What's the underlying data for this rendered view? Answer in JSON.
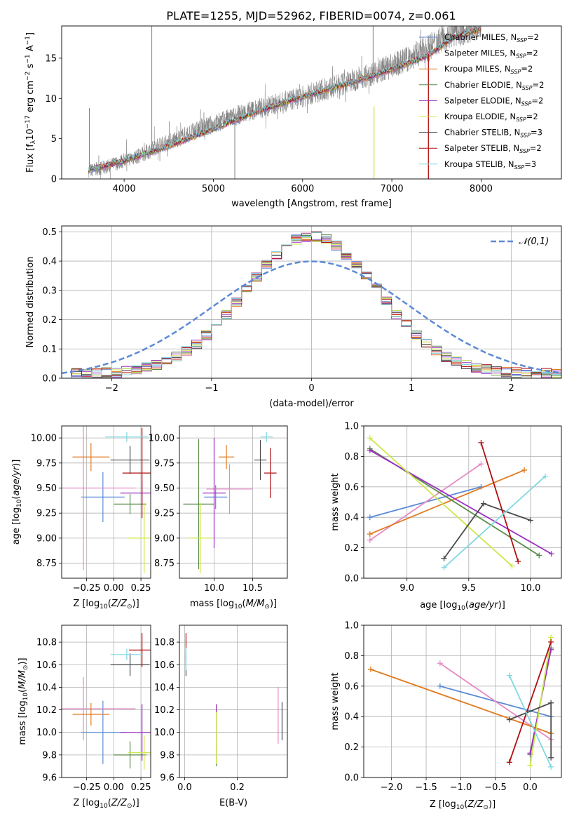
{
  "title": "PLATE=1255, MJD=52962, FIBERID=0074, z=0.061",
  "colors": {
    "Chabrier MILES": "#5b8ad6",
    "Salpeter MILES": "#e58ac4",
    "Kroupa MILES": "#e07a1f",
    "Chabrier ELODIE": "#5a8a4a",
    "Salpeter ELODIE": "#9c2fc0",
    "Kroupa ELODIE": "#cce84a",
    "Chabrier STELIB": "#4a4a4a",
    "Salpeter STELIB": "#b01010",
    "Kroupa STELIB": "#80d8e0",
    "data": "#808080",
    "normal": "#5b8ad6"
  },
  "chart_data": [
    {
      "id": "spectrum",
      "type": "line",
      "xlabel": "wavelength [Angstrom, rest frame]",
      "ylabel": "Flux [f_λ 10^-17 erg cm^-2 s^-1 A^-1]",
      "xlim": [
        3300,
        8900
      ],
      "ylim": [
        0,
        19
      ],
      "xticks": [
        4000,
        5000,
        6000,
        7000,
        8000
      ],
      "yticks": [
        0,
        5,
        10,
        15
      ],
      "grid": false,
      "legend_position": "right",
      "data_series": {
        "name": "data",
        "x": [
          3600,
          3800,
          4000,
          4200,
          4400,
          4600,
          4800,
          5000,
          5200,
          5400,
          5600,
          5800,
          6000,
          6200,
          6400,
          6600,
          6800,
          7000,
          7200,
          7400,
          7600,
          7800,
          8000
        ],
        "y": [
          1.0,
          1.5,
          2.3,
          3.0,
          4.2,
          5.0,
          6.0,
          6.8,
          7.6,
          8.4,
          9.0,
          9.6,
          10.2,
          11.0,
          11.6,
          12.4,
          13.2,
          14.0,
          15.0,
          16.2,
          17.8,
          18.4,
          19.0
        ],
        "spikes": [
          {
            "x": 3610,
            "y": 8.8
          },
          {
            "x": 4310,
            "y": 19.0
          },
          {
            "x": 5240,
            "y": 0.0
          },
          {
            "x": 6790,
            "y": 19.0
          }
        ]
      },
      "series": [
        {
          "name": "Chabrier MILES",
          "nssp": "2"
        },
        {
          "name": "Salpeter MILES",
          "nssp": "2"
        },
        {
          "name": "Kroupa MILES",
          "nssp": "2"
        },
        {
          "name": "Chabrier ELODIE",
          "nssp": "2"
        },
        {
          "name": "Salpeter ELODIE",
          "nssp": "2"
        },
        {
          "name": "Kroupa ELODIE",
          "nssp": "2"
        },
        {
          "name": "Chabrier STELIB",
          "nssp": "3"
        },
        {
          "name": "Salpeter STELIB",
          "nssp": "2"
        },
        {
          "name": "Kroupa STELIB",
          "nssp": "3"
        }
      ],
      "model_trend": {
        "x": [
          3600,
          4000,
          4500,
          5000,
          5500,
          6000,
          6500,
          7000,
          7400,
          7700,
          8000
        ],
        "y": [
          1.1,
          2.2,
          4.1,
          6.2,
          8.4,
          10.2,
          11.8,
          13.6,
          15.3,
          17.6,
          18.6
        ]
      },
      "artifacts": [
        {
          "series": "Kroupa ELODIE",
          "x": 6800,
          "from": 0,
          "to": 9
        },
        {
          "series": "Salpeter STELIB",
          "x": 7410,
          "from": 0,
          "to": 15.5
        }
      ]
    },
    {
      "id": "residuals",
      "type": "histogram",
      "xlabel": "(data-model)/error",
      "ylabel": "Normed distribution",
      "xlim": [
        -2.5,
        2.5
      ],
      "ylim": [
        0,
        0.52
      ],
      "xticks": [
        -2,
        -1,
        0,
        1,
        2
      ],
      "yticks": [
        0.0,
        0.1,
        0.2,
        0.3,
        0.4,
        0.5
      ],
      "grid": true,
      "bin_width": 0.1,
      "normal_label": "𝒩(0,1)",
      "legend_position": "top-right"
    },
    {
      "id": "age-vs-Z",
      "type": "errorbar",
      "xlabel": "Z [log10(Z/Z☉)]",
      "ylabel": "age [log10(age/yr)]",
      "xlim": [
        -0.48,
        0.34
      ],
      "ylim": [
        8.6,
        10.12
      ],
      "xticks": [
        -0.25,
        0.0,
        0.25
      ],
      "yticks": [
        8.75,
        9.0,
        9.25,
        9.5,
        9.75,
        10.0
      ],
      "points": [
        {
          "series": "Chabrier MILES",
          "x": -0.1,
          "y": 9.41,
          "xerr": 0.2,
          "yerr": 0.25
        },
        {
          "series": "Salpeter MILES",
          "x": -0.28,
          "y": 9.5,
          "xerr": 0.48,
          "yerr": 0.82
        },
        {
          "series": "Kroupa MILES",
          "x": -0.21,
          "y": 9.81,
          "xerr": 0.17,
          "yerr": 0.14
        },
        {
          "series": "Chabrier ELODIE",
          "x": 0.15,
          "y": 9.34,
          "xerr": 0.15,
          "yerr": 0.1
        },
        {
          "series": "Salpeter ELODIE",
          "x": 0.26,
          "y": 9.45,
          "xerr": 0.2,
          "yerr": 0.12
        },
        {
          "series": "Kroupa ELODIE",
          "x": 0.28,
          "y": 9.0,
          "xerr": 0.15,
          "yerr": 0.35
        },
        {
          "series": "Chabrier STELIB",
          "x": 0.15,
          "y": 9.78,
          "xerr": 0.18,
          "yerr": 0.14
        },
        {
          "series": "Salpeter STELIB",
          "x": 0.26,
          "y": 9.65,
          "xerr": 0.18,
          "yerr": 0.45
        },
        {
          "series": "Kroupa STELIB",
          "x": 0.12,
          "y": 10.01,
          "xerr": 0.2,
          "yerr": 0.05
        }
      ]
    },
    {
      "id": "age-vs-mass",
      "type": "errorbar",
      "xlabel": "mass [log10(M/M☉)]",
      "ylabel": "",
      "xlim": [
        9.55,
        10.95
      ],
      "ylim": [
        8.6,
        10.12
      ],
      "xticks": [
        10.0,
        10.5
      ],
      "yticks": [
        8.75,
        9.0,
        9.25,
        9.5,
        9.75,
        10.0
      ],
      "points": [
        {
          "series": "Chabrier MILES",
          "x": 10.02,
          "y": 9.41,
          "xerr": 0.15,
          "yerr": 0.12
        },
        {
          "series": "Salpeter MILES",
          "x": 10.2,
          "y": 9.49,
          "xerr": 0.3,
          "yerr": 0.25
        },
        {
          "series": "Kroupa MILES",
          "x": 10.16,
          "y": 9.81,
          "xerr": 0.1,
          "yerr": 0.12
        },
        {
          "series": "Chabrier ELODIE",
          "x": 9.8,
          "y": 9.34,
          "xerr": 0.2,
          "yerr": 0.65
        },
        {
          "series": "Salpeter ELODIE",
          "x": 10.0,
          "y": 9.45,
          "xerr": 0.15,
          "yerr": 0.55
        },
        {
          "series": "Kroupa ELODIE",
          "x": 9.82,
          "y": 9.0,
          "xerr": 0.15,
          "yerr": 0.35
        },
        {
          "series": "Chabrier STELIB",
          "x": 10.6,
          "y": 9.78,
          "xerr": 0.08,
          "yerr": 0.2
        },
        {
          "series": "Salpeter STELIB",
          "x": 10.73,
          "y": 9.65,
          "xerr": 0.08,
          "yerr": 0.25
        },
        {
          "series": "Kroupa STELIB",
          "x": 10.68,
          "y": 10.01,
          "xerr": 0.08,
          "yerr": 0.05
        }
      ]
    },
    {
      "id": "weight-vs-age",
      "type": "line",
      "xlabel": "age [log10(age/yr)]",
      "ylabel": "mass weight",
      "xlim": [
        8.65,
        10.25
      ],
      "ylim": [
        0.0,
        1.0
      ],
      "xticks": [
        9.0,
        9.5,
        10.0
      ],
      "yticks": [
        0.0,
        0.2,
        0.4,
        0.6,
        0.8,
        1.0
      ],
      "grid": true,
      "series": [
        {
          "name": "Chabrier MILES",
          "x": [
            8.7,
            9.6
          ],
          "y": [
            0.4,
            0.6
          ]
        },
        {
          "name": "Salpeter MILES",
          "x": [
            8.7,
            9.6
          ],
          "y": [
            0.25,
            0.75
          ]
        },
        {
          "name": "Kroupa MILES",
          "x": [
            8.7,
            9.95
          ],
          "y": [
            0.29,
            0.71
          ]
        },
        {
          "name": "Chabrier ELODIE",
          "x": [
            8.7,
            10.07
          ],
          "y": [
            0.85,
            0.15
          ]
        },
        {
          "name": "Salpeter ELODIE",
          "x": [
            8.7,
            10.17
          ],
          "y": [
            0.84,
            0.16
          ]
        },
        {
          "name": "Kroupa ELODIE",
          "x": [
            8.7,
            9.85
          ],
          "y": [
            0.92,
            0.08
          ]
        },
        {
          "name": "Chabrier STELIB",
          "x": [
            9.3,
            9.62,
            10.0
          ],
          "y": [
            0.13,
            0.49,
            0.38
          ]
        },
        {
          "name": "Salpeter STELIB",
          "x": [
            9.6,
            9.9
          ],
          "y": [
            0.89,
            0.11
          ]
        },
        {
          "name": "Kroupa STELIB",
          "x": [
            9.3,
            10.12
          ],
          "y": [
            0.07,
            0.67
          ]
        }
      ]
    },
    {
      "id": "mass-vs-Z",
      "type": "errorbar",
      "xlabel": "Z [log10(Z/Z☉)]",
      "ylabel": "mass [log10(M/M☉)]",
      "xlim": [
        -0.48,
        0.34
      ],
      "ylim": [
        9.6,
        10.95
      ],
      "xticks": [
        -0.25,
        0.0,
        0.25
      ],
      "yticks": [
        9.6,
        9.8,
        10.0,
        10.2,
        10.4,
        10.6,
        10.8
      ],
      "points": [
        {
          "series": "Chabrier MILES",
          "x": -0.1,
          "y": 10.0,
          "xerr": 0.2,
          "yerr": 0.28
        },
        {
          "series": "Salpeter MILES",
          "x": -0.28,
          "y": 10.21,
          "xerr": 0.48,
          "yerr": 0.28
        },
        {
          "series": "Kroupa MILES",
          "x": -0.21,
          "y": 10.16,
          "xerr": 0.17,
          "yerr": 0.1
        },
        {
          "series": "Chabrier ELODIE",
          "x": 0.15,
          "y": 9.8,
          "xerr": 0.15,
          "yerr": 0.12
        },
        {
          "series": "Salpeter ELODIE",
          "x": 0.26,
          "y": 10.0,
          "xerr": 0.2,
          "yerr": 0.25
        },
        {
          "series": "Kroupa ELODIE",
          "x": 0.28,
          "y": 9.82,
          "xerr": 0.15,
          "yerr": 0.15
        },
        {
          "series": "Chabrier STELIB",
          "x": 0.15,
          "y": 10.6,
          "xerr": 0.18,
          "yerr": 0.1
        },
        {
          "series": "Salpeter STELIB",
          "x": 0.26,
          "y": 10.73,
          "xerr": 0.12,
          "yerr": 0.15
        },
        {
          "series": "Kroupa STELIB",
          "x": 0.12,
          "y": 10.69,
          "xerr": 0.15,
          "yerr": 0.05
        }
      ]
    },
    {
      "id": "mass-vs-ebv",
      "type": "errorbar",
      "xlabel": "E(B-V)",
      "ylabel": "",
      "xlim": [
        -0.02,
        0.39
      ],
      "ylim": [
        9.6,
        10.95
      ],
      "xticks": [
        0.0,
        0.2
      ],
      "yticks": [
        9.6,
        9.8,
        10.0,
        10.2,
        10.4,
        10.6,
        10.8
      ],
      "points": [
        {
          "series": "Chabrier MILES",
          "x": 0.12,
          "y": 10.0,
          "xerr": 0.0,
          "yerr": 0.08
        },
        {
          "series": "Salpeter MILES",
          "x": 0.355,
          "y": 10.15,
          "xerr": 0.0,
          "yerr": 0.25
        },
        {
          "series": "Kroupa MILES",
          "x": 0.12,
          "y": 10.16,
          "xerr": 0.0,
          "yerr": 0.08
        },
        {
          "series": "Chabrier ELODIE",
          "x": 0.12,
          "y": 9.8,
          "xerr": 0.0,
          "yerr": 0.1
        },
        {
          "series": "Salpeter ELODIE",
          "x": 0.12,
          "y": 10.0,
          "xerr": 0.0,
          "yerr": 0.25
        },
        {
          "series": "Kroupa ELODIE",
          "x": 0.12,
          "y": 9.95,
          "xerr": 0.0,
          "yerr": 0.23
        },
        {
          "series": "Chabrier STELIB",
          "x": 0.005,
          "y": 10.6,
          "xerr": 0.0,
          "yerr": 0.1
        },
        {
          "series": "Salpeter STELIB",
          "x": 0.005,
          "y": 10.75,
          "xerr": 0.0,
          "yerr": 0.13
        },
        {
          "series": "Kroupa STELIB",
          "x": 0.005,
          "y": 10.65,
          "xerr": 0.0,
          "yerr": 0.1
        },
        {
          "series": "Chabrier STELIB",
          "x": 0.37,
          "y": 10.1,
          "xerr": 0.0,
          "yerr": 0.17
        }
      ]
    },
    {
      "id": "weight-vs-Z",
      "type": "line",
      "xlabel": "Z [log10(Z/Z☉)]",
      "ylabel": "mass weight",
      "xlim": [
        -2.4,
        0.45
      ],
      "ylim": [
        0.0,
        1.0
      ],
      "xticks": [
        -2.0,
        -1.5,
        -1.0,
        -0.5,
        0.0
      ],
      "yticks": [
        0.0,
        0.2,
        0.4,
        0.6,
        0.8,
        1.0
      ],
      "grid": true,
      "series": [
        {
          "name": "Chabrier MILES",
          "x": [
            -1.3,
            0.3
          ],
          "y": [
            0.6,
            0.4
          ]
        },
        {
          "name": "Salpeter MILES",
          "x": [
            -1.3,
            0.3
          ],
          "y": [
            0.75,
            0.25
          ]
        },
        {
          "name": "Kroupa MILES",
          "x": [
            -2.3,
            0.3
          ],
          "y": [
            0.71,
            0.29
          ]
        },
        {
          "name": "Chabrier ELODIE",
          "x": [
            0.0,
            0.3
          ],
          "y": [
            0.15,
            0.85
          ]
        },
        {
          "name": "Salpeter ELODIE",
          "x": [
            0.0,
            0.3
          ],
          "y": [
            0.16,
            0.84
          ]
        },
        {
          "name": "Kroupa ELODIE",
          "x": [
            0.0,
            0.3
          ],
          "y": [
            0.08,
            0.92
          ]
        },
        {
          "name": "Chabrier STELIB",
          "x": [
            -0.3,
            0.3,
            0.3
          ],
          "y": [
            0.38,
            0.49,
            0.13
          ]
        },
        {
          "name": "Salpeter STELIB",
          "x": [
            -0.3,
            0.3
          ],
          "y": [
            0.1,
            0.89
          ]
        },
        {
          "name": "Kroupa STELIB",
          "x": [
            -0.3,
            0.3
          ],
          "y": [
            0.67,
            0.07
          ]
        }
      ]
    }
  ]
}
